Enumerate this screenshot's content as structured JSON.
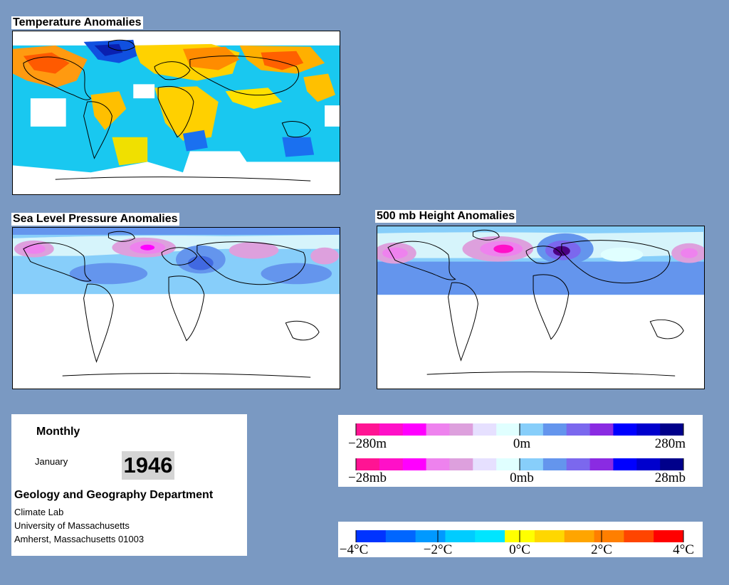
{
  "panels": {
    "temperature": {
      "title": "Temperature Anomalies"
    },
    "slp": {
      "title": "Sea Level Pressure Anomalies"
    },
    "height500": {
      "title": "500 mb Height Anomalies"
    }
  },
  "info": {
    "period": "Monthly",
    "month": "January",
    "year": "1946",
    "department": "Geology and Geography Department",
    "lab": "Climate Lab",
    "university": "University of Massachusetts",
    "address": "Amherst, Massachusetts 01003"
  },
  "legends": {
    "height": {
      "min": "−280m",
      "mid": "0m",
      "max": "280m"
    },
    "pressure": {
      "min": "−28mb",
      "mid": "0mb",
      "max": "28mb"
    },
    "temperature": {
      "t0": "−4°C",
      "t1": "−2°C",
      "t2": "0°C",
      "t3": "2°C",
      "t4": "4°C"
    }
  },
  "colors": {
    "background": "#7a99c2",
    "height_pressure_scale": [
      "#ff1493",
      "#ff10c8",
      "#ff00ff",
      "#ee82ee",
      "#dda0dd",
      "#e6e0ff",
      "#e0ffff",
      "#87cefa",
      "#6495ed",
      "#7b68ee",
      "#8a2be2",
      "#0000ff",
      "#0000cd",
      "#00008b"
    ],
    "temperature_scale": [
      "#0033ff",
      "#0066ff",
      "#0099ff",
      "#00ccff",
      "#00e5ff",
      "#ffff00",
      "#ffd700",
      "#ffa500",
      "#ff7f00",
      "#ff4500",
      "#ff0000"
    ]
  }
}
